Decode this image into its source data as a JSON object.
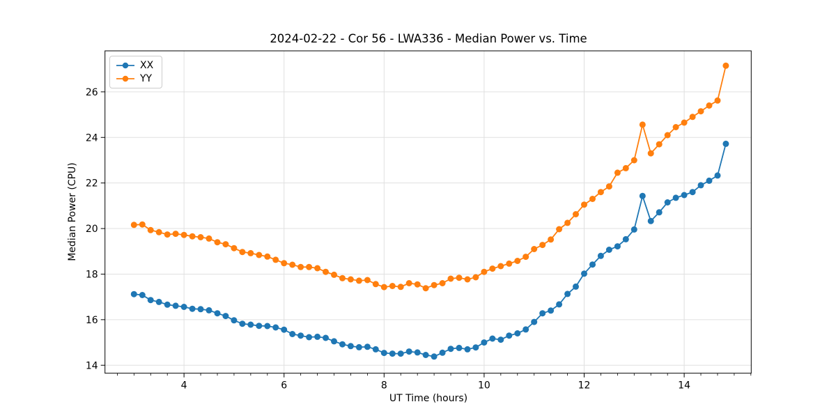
{
  "figure": {
    "title": "2024-02-22 - Cor 56 - LWA336 - Median Power vs. Time",
    "xlabel": "UT Time (hours)",
    "ylabel": "Median Power (CPU)"
  },
  "legend": {
    "items": [
      {
        "label": "XX",
        "color": "#1f77b4"
      },
      {
        "label": "YY",
        "color": "#ff7f0e"
      }
    ]
  },
  "chart_data": {
    "type": "line",
    "title": "2024-02-22 - Cor 56 - LWA336 - Median Power vs. Time",
    "xlabel": "UT Time (hours)",
    "ylabel": "Median Power (CPU)",
    "xlim": [
      2.42,
      15.34
    ],
    "ylim": [
      13.65,
      27.8
    ],
    "x_ticks": [
      4,
      6,
      8,
      10,
      12,
      14
    ],
    "y_ticks": [
      14,
      16,
      18,
      20,
      22,
      24,
      26
    ],
    "x_minor_step": 0.3333,
    "grid": "major-only",
    "grid_color": "#e0e0e0",
    "legend_position": "upper left",
    "marker": "circle",
    "x": [
      3,
      3.167,
      3.333,
      3.5,
      3.667,
      3.833,
      4,
      4.167,
      4.333,
      4.5,
      4.667,
      4.833,
      5,
      5.167,
      5.333,
      5.5,
      5.667,
      5.833,
      6,
      6.167,
      6.333,
      6.5,
      6.667,
      6.833,
      7,
      7.167,
      7.333,
      7.5,
      7.667,
      7.833,
      8,
      8.167,
      8.333,
      8.5,
      8.667,
      8.833,
      9,
      9.167,
      9.333,
      9.5,
      9.667,
      9.833,
      10,
      10.167,
      10.333,
      10.5,
      10.667,
      10.833,
      11,
      11.167,
      11.333,
      11.5,
      11.667,
      11.833,
      12,
      12.167,
      12.333,
      12.5,
      12.667,
      12.833,
      13,
      13.167,
      13.333,
      13.5,
      13.667,
      13.833,
      14,
      14.167,
      14.333,
      14.5,
      14.667,
      14.833
    ],
    "series": [
      {
        "name": "XX",
        "color": "#1f77b4",
        "values": [
          17.12,
          17.08,
          16.86,
          16.78,
          16.66,
          16.61,
          16.56,
          16.48,
          16.46,
          16.41,
          16.28,
          16.16,
          15.97,
          15.82,
          15.78,
          15.73,
          15.72,
          15.66,
          15.56,
          15.37,
          15.3,
          15.23,
          15.25,
          15.2,
          15.05,
          14.92,
          14.84,
          14.79,
          14.81,
          14.7,
          14.54,
          14.51,
          14.51,
          14.6,
          14.56,
          14.45,
          14.38,
          14.55,
          14.72,
          14.76,
          14.7,
          14.78,
          15.0,
          15.17,
          15.12,
          15.3,
          15.4,
          15.57,
          15.9,
          16.28,
          16.4,
          16.67,
          17.13,
          17.45,
          18.02,
          18.42,
          18.8,
          19.07,
          19.22,
          19.53,
          19.96,
          21.43,
          20.33,
          20.71,
          21.15,
          21.35,
          21.47,
          21.6,
          21.9,
          22.1,
          22.33,
          23.72
        ]
      },
      {
        "name": "YY",
        "color": "#ff7f0e",
        "values": [
          20.16,
          20.18,
          19.93,
          19.84,
          19.74,
          19.77,
          19.72,
          19.66,
          19.62,
          19.56,
          19.4,
          19.31,
          19.14,
          18.97,
          18.92,
          18.84,
          18.77,
          18.63,
          18.48,
          18.41,
          18.31,
          18.31,
          18.26,
          18.1,
          17.97,
          17.82,
          17.77,
          17.71,
          17.74,
          17.56,
          17.43,
          17.48,
          17.44,
          17.6,
          17.55,
          17.38,
          17.52,
          17.6,
          17.8,
          17.84,
          17.77,
          17.86,
          18.1,
          18.24,
          18.35,
          18.46,
          18.58,
          18.76,
          19.1,
          19.28,
          19.52,
          19.97,
          20.25,
          20.63,
          21.05,
          21.3,
          21.6,
          21.85,
          22.45,
          22.65,
          23.0,
          24.56,
          23.3,
          23.7,
          24.1,
          24.45,
          24.65,
          24.9,
          25.15,
          25.4,
          25.62,
          27.15
        ]
      }
    ]
  }
}
